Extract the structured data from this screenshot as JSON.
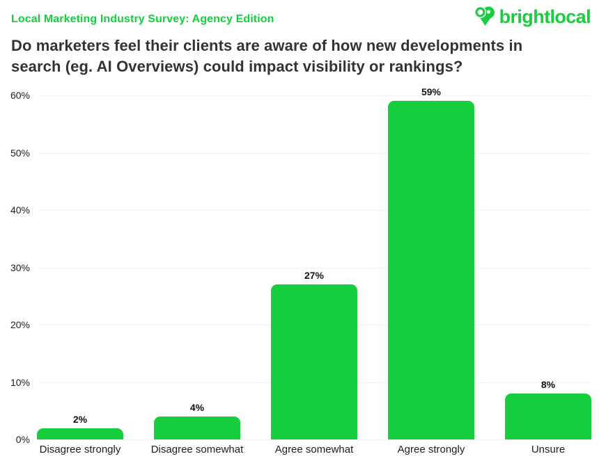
{
  "header": {
    "eyebrow": "Local Marketing Industry Survey: Agency Edition",
    "title_lines": [
      "Do marketers feel their clients are aware of how new developments in",
      "search (eg. AI Overviews) could impact visibility or rankings?"
    ],
    "logo_text": "brightlocal"
  },
  "colors": {
    "green": "#17ce3e",
    "title_text": "#333333",
    "axis_text": "#1c1c1c",
    "gridline": "#f0f0f0"
  },
  "chart_data": {
    "type": "bar",
    "title": "Do marketers feel their clients are aware of how new developments in search (eg. AI Overviews) could impact visibility or rankings?",
    "categories": [
      "Disagree strongly",
      "Disagree somewhat",
      "Agree somewhat",
      "Agree strongly",
      "Unsure"
    ],
    "values": [
      2,
      4,
      27,
      59,
      8
    ],
    "value_labels": [
      "2%",
      "4%",
      "27%",
      "59%",
      "8%"
    ],
    "yticks": [
      0,
      10,
      20,
      30,
      40,
      50,
      60
    ],
    "ytick_labels": [
      "0%",
      "10%",
      "20%",
      "30%",
      "40%",
      "50%",
      "60%"
    ],
    "ylim": [
      0,
      60
    ],
    "xlabel": "",
    "ylabel": "",
    "bar_color": "#17ce3e",
    "grid": "on",
    "legend": "none"
  }
}
